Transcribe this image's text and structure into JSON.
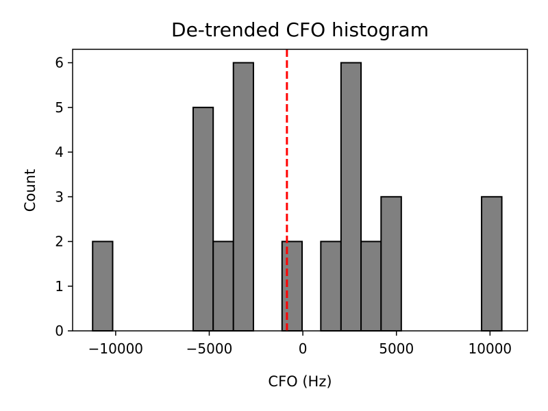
{
  "chart_data": {
    "type": "bar",
    "title": "De-trended CFO histogram",
    "xlabel": "CFO (Hz)",
    "ylabel": "Count",
    "xlim": [
      -12300,
      12000
    ],
    "ylim": [
      0,
      6.3
    ],
    "xticks": [
      -10000,
      -5000,
      0,
      5000,
      10000
    ],
    "xtick_labels": [
      "−10000",
      "−5000",
      "0",
      "5000",
      "10000"
    ],
    "yticks": [
      0,
      1,
      2,
      3,
      4,
      5,
      6
    ],
    "ytick_labels": [
      "0",
      "1",
      "2",
      "3",
      "4",
      "5",
      "6"
    ],
    "grid": false,
    "bins": [
      {
        "x0": -11230,
        "x1": -10160,
        "count": 2
      },
      {
        "x0": -5860,
        "x1": -4790,
        "count": 5
      },
      {
        "x0": -4790,
        "x1": -3710,
        "count": 2
      },
      {
        "x0": -3710,
        "x1": -2640,
        "count": 6
      },
      {
        "x0": -1110,
        "x1": -40,
        "count": 2
      },
      {
        "x0": 960,
        "x1": 2040,
        "count": 2
      },
      {
        "x0": 2040,
        "x1": 3110,
        "count": 6
      },
      {
        "x0": 3110,
        "x1": 4180,
        "count": 2
      },
      {
        "x0": 4180,
        "x1": 5260,
        "count": 3
      },
      {
        "x0": 9550,
        "x1": 10630,
        "count": 3
      }
    ],
    "reference_line": {
      "x": -850,
      "color": "#ff0000",
      "style": "dashed"
    },
    "bar_color": "#808080",
    "edge_color": "#000000"
  }
}
